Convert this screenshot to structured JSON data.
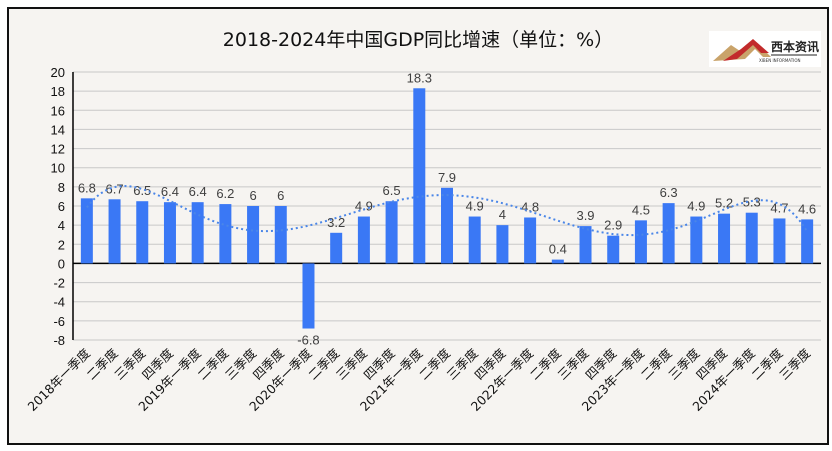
{
  "chart_data": {
    "type": "bar",
    "title": "2018-2024年中国GDP同比增速（单位：%）",
    "categories": [
      "2018年一季度",
      "二季度",
      "三季度",
      "四季度",
      "2019年一季度",
      "二季度",
      "三季度",
      "四季度",
      "2020年一季度",
      "二季度",
      "三季度",
      "四季度",
      "2021年一季度",
      "二季度",
      "三季度",
      "四季度",
      "2022年一季度",
      "二季度",
      "三季度",
      "四季度",
      "2023年一季度",
      "二季度",
      "三季度",
      "四季度",
      "2024年一季度",
      "二季度",
      "三季度"
    ],
    "values": [
      6.8,
      6.7,
      6.5,
      6.4,
      6.4,
      6.2,
      6,
      6,
      -6.8,
      3.2,
      4.9,
      6.5,
      18.3,
      7.9,
      4.9,
      4,
      4.8,
      0.4,
      3.9,
      2.9,
      4.5,
      6.3,
      4.9,
      5.2,
      5.3,
      4.7,
      4.6
    ],
    "ylim": [
      -8,
      20
    ],
    "yticks": [
      -8,
      -6,
      -4,
      -2,
      0,
      2,
      4,
      6,
      8,
      10,
      12,
      14,
      16,
      18,
      20
    ],
    "grid": true,
    "trendline": "polynomial",
    "bar_color": "#3a78f5",
    "trend_color": "#4a86e8",
    "label_color": "#404040"
  },
  "logo": {
    "text": "西本资讯",
    "subtext": "XIBEN INFORMATION"
  }
}
